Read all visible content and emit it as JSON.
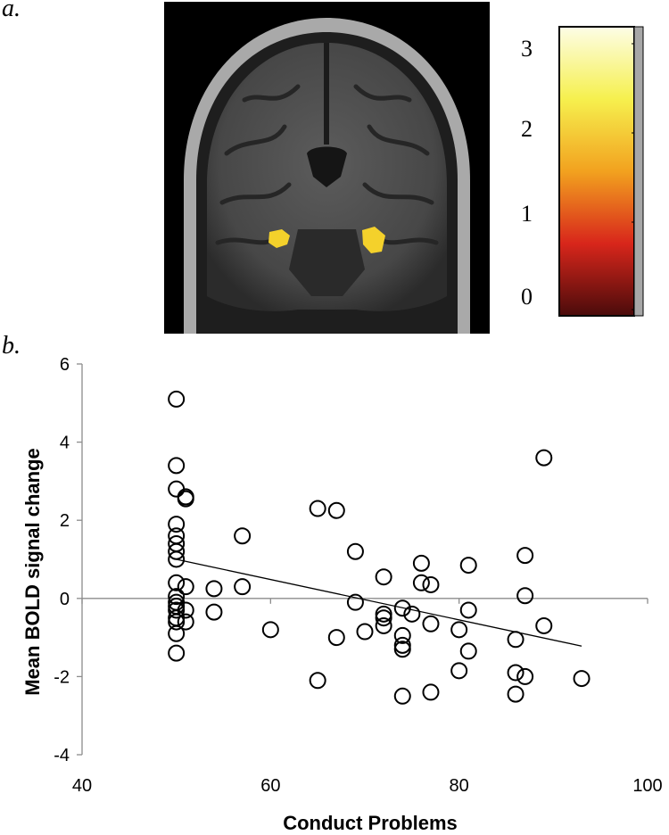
{
  "panels": {
    "a_label": "a.",
    "b_label": "b."
  },
  "colorbar": {
    "ticks": [
      "3",
      "2",
      "1",
      "0"
    ],
    "colors": [
      "#fdfde6",
      "#f6f04e",
      "#f2a21f",
      "#d8261b",
      "#4a0b0b"
    ]
  },
  "chart_data": {
    "type": "scatter",
    "xlabel": "Conduct Problems",
    "ylabel": "Mean BOLD signal change",
    "xlim": [
      40,
      100
    ],
    "ylim": [
      -4,
      6
    ],
    "xticks": [
      40,
      60,
      80,
      100
    ],
    "yticks": [
      -4,
      -2,
      0,
      2,
      4,
      6
    ],
    "grid": false,
    "marker": "open-circle",
    "trendline": {
      "x": [
        50,
        93
      ],
      "y": [
        1.0,
        -1.22
      ]
    },
    "points": [
      [
        50,
        5.1
      ],
      [
        50,
        3.4
      ],
      [
        50,
        2.8
      ],
      [
        51,
        2.6
      ],
      [
        51,
        2.55
      ],
      [
        50,
        1.9
      ],
      [
        50,
        1.6
      ],
      [
        50,
        1.4
      ],
      [
        50,
        1.2
      ],
      [
        50,
        1.0
      ],
      [
        50,
        0.4
      ],
      [
        50,
        0.05
      ],
      [
        50,
        -0.1
      ],
      [
        50,
        -0.2
      ],
      [
        50,
        -0.3
      ],
      [
        50,
        -0.5
      ],
      [
        50,
        -0.6
      ],
      [
        50,
        -0.9
      ],
      [
        50,
        -1.4
      ],
      [
        51,
        0.3
      ],
      [
        51,
        -0.3
      ],
      [
        51,
        -0.6
      ],
      [
        54,
        0.25
      ],
      [
        54,
        -0.35
      ],
      [
        57,
        1.6
      ],
      [
        57,
        0.3
      ],
      [
        60,
        -0.8
      ],
      [
        65,
        2.3
      ],
      [
        65,
        -2.1
      ],
      [
        67,
        2.25
      ],
      [
        67,
        -1.0
      ],
      [
        69,
        1.2
      ],
      [
        69,
        -0.1
      ],
      [
        70,
        -0.85
      ],
      [
        72,
        0.55
      ],
      [
        72,
        -0.4
      ],
      [
        72,
        -0.5
      ],
      [
        72,
        -0.7
      ],
      [
        74,
        -0.25
      ],
      [
        74,
        -0.95
      ],
      [
        74,
        -1.2
      ],
      [
        74,
        -1.3
      ],
      [
        74,
        -2.5
      ],
      [
        75,
        -0.4
      ],
      [
        76,
        0.9
      ],
      [
        76,
        0.4
      ],
      [
        77,
        0.35
      ],
      [
        77,
        -0.65
      ],
      [
        77,
        -2.4
      ],
      [
        80,
        -0.8
      ],
      [
        80,
        -1.85
      ],
      [
        81,
        0.85
      ],
      [
        81,
        -0.3
      ],
      [
        81,
        -1.35
      ],
      [
        86,
        -1.05
      ],
      [
        86,
        -1.9
      ],
      [
        86,
        -2.45
      ],
      [
        87,
        1.1
      ],
      [
        87,
        0.07
      ],
      [
        87,
        -2.0
      ],
      [
        89,
        3.6
      ],
      [
        89,
        -0.7
      ],
      [
        93,
        -2.05
      ]
    ]
  }
}
